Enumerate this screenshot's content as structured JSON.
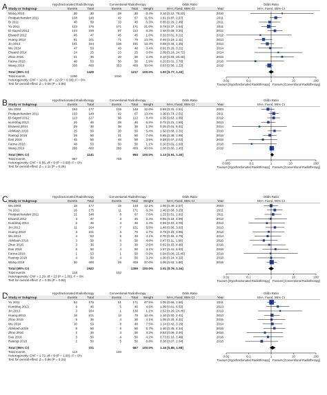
{
  "headers": {
    "group1": "Hypofractionated Radiotherapy",
    "group2": "Conventional Radiotherapy",
    "odds_ratio": "Odds Ratio",
    "study": "Study or Subgroup",
    "events": "Events",
    "total": "Total",
    "weight": "Weight",
    "method": "M-H, Fixed, 95% CI",
    "year": "Year"
  },
  "labels": {
    "total_events": "Total events",
    "favours_left": "Favours [Hypofractionated Radiotherapy]",
    "favours_right": "Favours [Conventional Radiotherapy]"
  },
  "colors": {
    "box": "#1f3fa8",
    "diamond": "#000000",
    "text": "#1a1a1a"
  },
  "panels": [
    {
      "letter": "A",
      "axis_ticks": [
        "0.01",
        "0.1",
        "1",
        "10",
        "100"
      ],
      "studies": [
        {
          "name": "Wang 2010",
          "e1": "30",
          "n1": "30",
          "e2": "29",
          "n2": "30",
          "weight": "0.4%",
          "ci": "3.10 [0.12, 79.23]",
          "year": "2010",
          "or": 3.1,
          "lo": 0.12,
          "hi": 79.23,
          "w": 0.4
        },
        {
          "name": "Pinitpatcharalert 2011",
          "e1": "108",
          "n1": "148",
          "e2": "42",
          "n2": "67",
          "weight": "11.5%",
          "ci": "1.61 [0.87, 2.97]",
          "year": "2011",
          "or": 1.61,
          "lo": 0.87,
          "hi": 2.97,
          "w": 11.5
        },
        {
          "name": "Bi 2011",
          "e1": "40",
          "n1": "50",
          "e2": "33",
          "n2": "40",
          "weight": "6.3%",
          "ci": "0.85 [0.29, 2.49]",
          "year": "2011",
          "or": 0.85,
          "lo": 0.29,
          "hi": 2.49,
          "w": 6.3
        },
        {
          "name": "Yu 2011",
          "e1": "123",
          "n1": "175",
          "e2": "171",
          "n2": "171",
          "weight": "21.0%",
          "ci": "0.78 [0.37, 1.64]",
          "year": "2011",
          "or": 0.78,
          "lo": 0.37,
          "hi": 1.64,
          "w": 21.0
        },
        {
          "name": "El-Sayed 2012",
          "e1": "144",
          "n1": "159",
          "e2": "97",
          "n2": "112",
          "weight": "8.3%",
          "ci": "1.48 [0.69, 3.20]",
          "year": "2012",
          "or": 1.48,
          "lo": 0.69,
          "hi": 3.2,
          "w": 8.3
        },
        {
          "name": "Elsaeid 2012",
          "e1": "46",
          "n1": "47",
          "e2": "45",
          "n2": "45",
          "weight": "1.0%",
          "ci": "0.33 [0.01, 8.21]",
          "year": "2012",
          "or": 0.33,
          "lo": 0.01,
          "hi": 8.21,
          "w": 1.0
        },
        {
          "name": "Huang 2013",
          "e1": "81",
          "n1": "101",
          "e2": "71",
          "n2": "79",
          "weight": "13.4%",
          "ci": "0.46 [0.19, 1.11]",
          "year": "2013",
          "or": 0.46,
          "lo": 0.19,
          "hi": 1.11,
          "w": 13.4
        },
        {
          "name": "Jin 2013",
          "e1": "141",
          "n1": "164",
          "e2": "136",
          "n2": "151",
          "weight": "13.4%",
          "ci": "0.68 [0.34, 1.35]",
          "year": "2013",
          "or": 0.68,
          "lo": 0.34,
          "hi": 1.35,
          "w": 13.4
        },
        {
          "name": "Wu 2014",
          "e1": "47",
          "n1": "53",
          "e2": "43",
          "n2": "48",
          "weight": "3.4%",
          "ci": "0.91 [0.26, 3.21]",
          "year": "2014",
          "or": 0.91,
          "lo": 0.26,
          "hi": 3.21,
          "w": 3.4
        },
        {
          "name": "Elsaeid 2014",
          "e1": "24",
          "n1": "25",
          "e2": "23",
          "n2": "25",
          "weight": "0.8%",
          "ci": "2.09 [0.18, 24.72]",
          "year": "2014",
          "or": 2.09,
          "lo": 0.18,
          "hi": 24.72,
          "w": 0.8
        },
        {
          "name": "Zhao 2015",
          "e1": "31",
          "n1": "36",
          "e2": "20",
          "n2": "30",
          "weight": "2.4%",
          "ci": "3.10 [0.93, 10.40]",
          "year": "2015",
          "or": 3.1,
          "lo": 0.93,
          "hi": 10.4,
          "w": 2.4
        },
        {
          "name": "Fatma 2018",
          "e1": "48",
          "n1": "53",
          "e2": "50",
          "n2": "50",
          "weight": "1.9%",
          "ci": "0.20 [0.01, 3.78]",
          "year": "2018",
          "or": 0.2,
          "lo": 0.01,
          "hi": 3.78,
          "w": 1.9
        },
        {
          "name": "Wang 2019",
          "e1": "336",
          "n1": "400",
          "e2": "353",
          "n2": "409",
          "weight": "30.0%",
          "ci": "0.83 [0.56, 1.22]",
          "year": "2019",
          "or": 0.83,
          "lo": 0.56,
          "hi": 1.22,
          "w": 30.0
        }
      ],
      "total": {
        "label": "Total (95% CI)",
        "n1": "1429",
        "n2": "1217",
        "weight": "100.0%",
        "ci": "1.00 [0.77, 1.33]",
        "or": 1.0,
        "lo": 0.77,
        "hi": 1.33
      },
      "total_events": {
        "e1": "1200",
        "e2": "1016"
      },
      "heterogeneity": "Heterogeneity: Chi² = 12.81, df = 12 (P = 0.38); I² = 6%",
      "overall": "Test for overall effect: Z = 0.06 (P = 0.96)"
    },
    {
      "letter": "B",
      "axis_ticks": [
        "0.005",
        "0.1",
        "1",
        "10",
        "200"
      ],
      "studies": [
        {
          "name": "Wu 2003",
          "e1": "163",
          "n1": "177",
          "e2": "135",
          "n2": "148",
          "weight": "12.0%",
          "ci": "0.69 [0.31, 1.51]",
          "year": "2003",
          "or": 0.69,
          "lo": 0.31,
          "hi": 1.51,
          "w": 12.0
        },
        {
          "name": "Pinitpatcharalert 2011",
          "e1": "103",
          "n1": "148",
          "e2": "42",
          "n2": "67",
          "weight": "13.4%",
          "ci": "1.36 [0.74, 2.51]",
          "year": "2011",
          "or": 1.36,
          "lo": 0.74,
          "hi": 2.51,
          "w": 13.4
        },
        {
          "name": "El-Sayed 2012",
          "e1": "113",
          "n1": "127",
          "e2": "96",
          "n2": "112",
          "weight": "8.4%",
          "ci": "1.35 [0.63, 2.89]",
          "year": "2012",
          "or": 1.35,
          "lo": 0.63,
          "hi": 2.89,
          "w": 8.4
        },
        {
          "name": "Kumbhaj 2013",
          "e1": "26",
          "n1": "46",
          "e2": "28",
          "n2": "46",
          "weight": "6.8%",
          "ci": "0.72 [0.31, 1.68]",
          "year": "2013",
          "or": 0.72,
          "lo": 0.31,
          "hi": 1.68,
          "w": 6.8
        },
        {
          "name": "Elsaeed 2014",
          "e1": "29",
          "n1": "30",
          "e2": "38",
          "n2": "38",
          "weight": "1.3%",
          "ci": "0.25 [0.01, 6.41]",
          "year": "2014",
          "or": 0.25,
          "lo": 0.01,
          "hi": 6.41,
          "w": 1.3
        },
        {
          "name": "Abhilash 2016",
          "e1": "25",
          "n1": "50",
          "e2": "20",
          "n2": "50",
          "weight": "5.4%",
          "ci": "1.50 [0.68, 3.31]",
          "year": "2016",
          "or": 1.5,
          "lo": 0.68,
          "hi": 3.31,
          "w": 5.4
        },
        {
          "name": "Rastogi 2018",
          "e1": "29",
          "n1": "50",
          "e2": "31",
          "n2": "50",
          "weight": "7.6%",
          "ci": "0.85 [0.38, 1.89]",
          "year": "2018",
          "or": 0.85,
          "lo": 0.38,
          "hi": 1.89,
          "w": 7.6
        },
        {
          "name": "Das 2018",
          "e1": "45",
          "n1": "50",
          "e2": "48",
          "n2": "50",
          "weight": "3.5%",
          "ci": "0.38 [0.07, 2.03]",
          "year": "2018",
          "or": 0.38,
          "lo": 0.07,
          "hi": 2.03,
          "w": 3.5
        },
        {
          "name": "Fatma 2018",
          "e1": "48",
          "n1": "53",
          "e2": "50",
          "n2": "50",
          "weight": "1.1%",
          "ci": "0.10 [0.01, 1.93]",
          "year": "2018",
          "or": 0.1,
          "lo": 0.01,
          "hi": 1.93,
          "w": 1.1
        },
        {
          "name": "Wang 2019",
          "e1": "286",
          "n1": "400",
          "e2": "286",
          "n2": "409",
          "weight": "40.6%",
          "ci": "1.08 [0.80, 1.45]",
          "year": "2019",
          "or": 1.08,
          "lo": 0.8,
          "hi": 1.45,
          "w": 40.6
        }
      ],
      "total": {
        "label": "Total (95% CI)",
        "n1": "1141",
        "n2": "950",
        "weight": "100.0%",
        "ci": "1.13 [0.91, 1.40]",
        "or": 1.13,
        "lo": 0.91,
        "hi": 1.4
      },
      "total_events": {
        "e1": "867",
        "e2": "748"
      },
      "heterogeneity": "Heterogeneity: Chi² = 6.55, df = 9 (P = 0.68); I² = 0%",
      "overall": "Test for overall effect: Z = 1.11 (P = 0.26)"
    },
    {
      "letter": "C",
      "axis_ticks": [
        "0.01",
        "0.1",
        "1",
        "10",
        "100"
      ],
      "studies": [
        {
          "name": "Wu 2003",
          "e1": "18",
          "n1": "177",
          "e2": "15",
          "n2": "148",
          "weight": "12.1%",
          "ci": "1.00 [0.49, 2.07]",
          "year": "2003",
          "or": 1.0,
          "lo": 0.49,
          "hi": 2.07,
          "w": 12.1
        },
        {
          "name": "Yu 2011",
          "e1": "16",
          "n1": "175",
          "e2": "11",
          "n2": "171",
          "weight": "8.3%",
          "ci": "1.46 [0.66, 3.25]",
          "year": "2011",
          "or": 1.46,
          "lo": 0.66,
          "hi": 3.25,
          "w": 8.3
        },
        {
          "name": "Pinitpatcharalert 2011",
          "e1": "21",
          "n1": "148",
          "e2": "8",
          "n2": "67",
          "weight": "7.6%",
          "ci": "1.22 [0.51, 2.91]",
          "year": "2011",
          "or": 1.22,
          "lo": 0.51,
          "hi": 2.91,
          "w": 7.6
        },
        {
          "name": "Elsaeid 2012",
          "e1": "3",
          "n1": "47",
          "e2": "3",
          "n2": "45",
          "weight": "2.4%",
          "ci": "0.95 [0.18, 4.99]",
          "year": "2012",
          "or": 0.95,
          "lo": 0.18,
          "hi": 4.99,
          "w": 2.4
        },
        {
          "name": "Kumbhaj 2013",
          "e1": "2",
          "n1": "46",
          "e2": "3",
          "n2": "46",
          "weight": "2.4%",
          "ci": "0.65 [0.10, 4.09]",
          "year": "2013",
          "or": 0.65,
          "lo": 0.1,
          "hi": 4.09,
          "w": 2.4
        },
        {
          "name": "Jin 2013",
          "e1": "11",
          "n1": "164",
          "e2": "7",
          "n2": "151",
          "weight": "5.5%",
          "ci": "1.48 [0.56, 3.92]",
          "year": "2013",
          "or": 1.48,
          "lo": 0.56,
          "hi": 3.92,
          "w": 5.5
        },
        {
          "name": "Huang 2013",
          "e1": "3",
          "n1": "101",
          "e2": "3",
          "n2": "79",
          "weight": "2.7%",
          "ci": "0.78 [0.15, 3.96]",
          "year": "2013",
          "or": 0.78,
          "lo": 0.15,
          "hi": 3.96,
          "w": 2.7
        },
        {
          "name": "Wu 2014",
          "e1": "4",
          "n1": "53",
          "e2": "5",
          "n2": "48",
          "weight": "4.1%",
          "ci": "0.70 [0.18, 2.79]",
          "year": "2014",
          "or": 0.7,
          "lo": 0.18,
          "hi": 2.79,
          "w": 4.1
        },
        {
          "name": "Abhilash 2016",
          "e1": "3",
          "n1": "50",
          "e2": "6",
          "n2": "50",
          "weight": "4.8%",
          "ci": "0.47 [0.11, 1.99]",
          "year": "2016",
          "or": 0.47,
          "lo": 0.11,
          "hi": 1.99,
          "w": 4.8
        },
        {
          "name": "Zhao 2016",
          "e1": "3",
          "n1": "36",
          "e2": "3",
          "n2": "30",
          "weight": "2.5%",
          "ci": "0.82 [0.15, 4.40]",
          "year": "2016",
          "or": 0.82,
          "lo": 0.15,
          "hi": 4.4,
          "w": 2.5
        },
        {
          "name": "Das 2018",
          "e1": "6",
          "n1": "50",
          "e2": "4",
          "n2": "50",
          "weight": "3.1%",
          "ci": "1.57 [0.41, 5.93]",
          "year": "2018",
          "or": 1.57,
          "lo": 0.41,
          "hi": 5.93,
          "w": 3.1
        },
        {
          "name": "Fatma 2018",
          "e1": "1",
          "n1": "53",
          "e2": "1",
          "n2": "50",
          "weight": "0.9%",
          "ci": "0.94 [0.06, 15.45]",
          "year": "2018",
          "or": 0.94,
          "lo": 0.06,
          "hi": 15.45,
          "w": 0.9
        },
        {
          "name": "Rastogi 2018",
          "e1": "4",
          "n1": "50",
          "e2": "4",
          "n2": "50",
          "weight": "3.2%",
          "ci": "1.00 [0.24, 4.22]",
          "year": "2018",
          "or": 1.0,
          "lo": 0.24,
          "hi": 4.22,
          "w": 3.2
        },
        {
          "name": "Wang 2019",
          "e1": "30",
          "n1": "400",
          "e2": "29",
          "n2": "409",
          "weight": "37.0%",
          "ci": "1.06 [0.63, 1.80]",
          "year": "2019",
          "or": 1.06,
          "lo": 0.63,
          "hi": 1.8,
          "w": 37.0
        }
      ],
      "total": {
        "label": "Total (95% CI)",
        "n1": "1522",
        "n2": "1359",
        "weight": "100.0%",
        "ci": "1.01 [0.76, 1.34]",
        "or": 1.01,
        "lo": 0.76,
        "hi": 1.34
      },
      "total_events": {
        "e1": "118",
        "e2": "102"
      },
      "heterogeneity": "Heterogeneity: Chi² = 2.29, df = 13 (P = 1.00); I² = 0%",
      "overall": "Test for overall effect: Z = 0.05 (P = 0.96)"
    },
    {
      "letter": "D",
      "axis_ticks": [
        "0.01",
        "0.1",
        "1",
        "10",
        "100"
      ],
      "studies": [
        {
          "name": "Yu 2011",
          "e1": "54",
          "n1": "175",
          "e2": "51",
          "n2": "171",
          "weight": "47.5%",
          "ci": "1.05 [0.66, 1.66]",
          "year": "2011",
          "or": 1.05,
          "lo": 0.66,
          "hi": 1.66,
          "w": 47.5
        },
        {
          "name": "Kumbhaj 2013",
          "e1": "9",
          "n1": "46",
          "e2": "5",
          "n2": "46",
          "weight": "4.5%",
          "ci": "1.99 [0.61, 6.53]",
          "year": "2013",
          "or": 1.99,
          "lo": 0.61,
          "hi": 6.53,
          "w": 4.5
        },
        {
          "name": "Jin 2013",
          "e1": "3",
          "n1": "164",
          "e2": "1",
          "n2": "136",
          "weight": "1.1%",
          "ci": "2.52 [0.26, 24.46]",
          "year": "2013",
          "or": 2.52,
          "lo": 0.26,
          "hi": 24.46,
          "w": 1.1
        },
        {
          "name": "Huang 2013",
          "e1": "18",
          "n1": "101",
          "e2": "13",
          "n2": "79",
          "weight": "13.4%",
          "ci": "1.10 [0.50, 2.41]",
          "year": "2013",
          "or": 1.1,
          "lo": 0.5,
          "hi": 2.41,
          "w": 13.4
        },
        {
          "name": "Zhao 2015",
          "e1": "5",
          "n1": "36",
          "e2": "4",
          "n2": "30",
          "weight": "4.1%",
          "ci": "1.05 [0.25, 4.31]",
          "year": "2015",
          "or": 1.05,
          "lo": 0.25,
          "hi": 4.31,
          "w": 4.1
        },
        {
          "name": "Wu 2014",
          "e1": "10",
          "n1": "53",
          "e2": "8",
          "n2": "48",
          "weight": "7.5%",
          "ci": "1.14 [0.42, 3.19]",
          "year": "2014",
          "or": 1.14,
          "lo": 0.42,
          "hi": 3.19,
          "w": 7.5
        },
        {
          "name": "Abhilash 2016",
          "e1": "8",
          "n1": "50",
          "e2": "6",
          "n2": "50",
          "weight": "5.7%",
          "ci": "1.40 [0.45, 4.34]",
          "year": "2016",
          "or": 1.4,
          "lo": 0.45,
          "hi": 4.34,
          "w": 5.7
        },
        {
          "name": "Zhao 2016",
          "e1": "2",
          "n1": "36",
          "e2": "3",
          "n2": "30",
          "weight": "3.3%",
          "ci": "0.53 [0.08, 3.40]",
          "year": "2016",
          "or": 0.53,
          "lo": 0.08,
          "hi": 3.4,
          "w": 3.3
        },
        {
          "name": "Das 2018",
          "e1": "3",
          "n1": "50",
          "e2": "4",
          "n2": "50",
          "weight": "4.2%",
          "ci": "0.73 [0.16, 3.46]",
          "year": "2018",
          "or": 0.73,
          "lo": 0.16,
          "hi": 3.46,
          "w": 4.2
        },
        {
          "name": "Rastogi 2018",
          "e1": "2",
          "n1": "50",
          "e2": "5",
          "n2": "50",
          "weight": "8.8%",
          "ci": "0.38 [0.07, 2.04]",
          "year": "2018",
          "or": 0.38,
          "lo": 0.07,
          "hi": 2.04,
          "w": 8.8
        }
      ],
      "total": {
        "label": "Total (95% CI)",
        "n1": "721",
        "n2": "687",
        "weight": "100.0%",
        "ci": "1.16 [0.85, 1.58]",
        "or": 1.16,
        "lo": 0.85,
        "hi": 1.58
      },
      "total_events": {
        "e1": "114",
        "e2": "100"
      },
      "heterogeneity": "Heterogeneity: Chi² = 1.72, df = 9 (P = 1.00); I² = 0%",
      "overall": "Test for overall effect: Z = 0.96 (P = 0.34)"
    }
  ]
}
